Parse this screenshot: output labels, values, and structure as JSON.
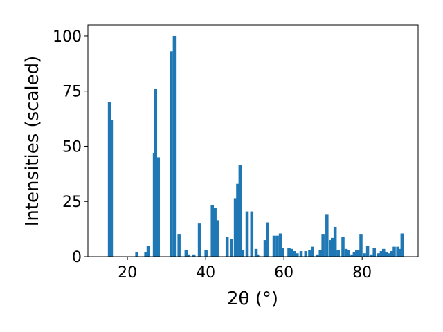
{
  "chart_data": {
    "type": "bar",
    "x_label": "2θ (°)",
    "y_label": "Intensities (scaled)",
    "color": "#1f77b4",
    "x": [
      15.4,
      15.9,
      22.4,
      24.7,
      25.3,
      26.9,
      27.2,
      27.9,
      31.2,
      32.0,
      33.2,
      35.0,
      35.7,
      37.0,
      38.4,
      40.1,
      41.7,
      42.4,
      43.1,
      45.5,
      46.6,
      47.6,
      48.2,
      48.8,
      49.5,
      50.6,
      51.8,
      52.9,
      53.3,
      55.2,
      55.8,
      57.5,
      58.3,
      59.1,
      59.7,
      61.3,
      62.0,
      62.7,
      63.4,
      64.4,
      65.6,
      66.6,
      67.3,
      68.5,
      69.3,
      70.0,
      71.0,
      71.9,
      72.4,
      73.1,
      73.9,
      75.1,
      75.9,
      76.5,
      77.4,
      78.0,
      78.6,
      79.2,
      79.7,
      80.6,
      81.4,
      82.3,
      83.1,
      84.2,
      84.9,
      85.5,
      86.2,
      86.9,
      87.6,
      88.2,
      89.1,
      89.7,
      90.2
    ],
    "values": [
      70,
      62,
      2,
      2,
      5,
      47,
      76,
      45,
      93,
      100,
      10,
      3,
      1,
      1,
      15,
      3,
      23.5,
      22,
      16.5,
      9,
      8,
      26.5,
      33,
      41.5,
      3,
      20.5,
      20.5,
      3.5,
      1,
      7.5,
      15.5,
      9.5,
      9.5,
      10.5,
      4,
      4,
      3.5,
      2.5,
      1.5,
      2.5,
      2.5,
      3,
      4.5,
      1,
      3,
      10,
      19,
      7.5,
      8.5,
      13.5,
      3,
      9,
      3.5,
      3,
      1,
      2,
      3,
      3,
      10,
      1.5,
      5,
      1,
      4,
      1.5,
      2.5,
      3.5,
      2,
      1.5,
      2.5,
      4.5,
      4.5,
      3.5,
      10.5
    ],
    "xlim": [
      9.9,
      94.3
    ],
    "xticks": [
      20,
      40,
      60,
      80
    ],
    "ylim": [
      0,
      105
    ],
    "yticks": [
      0,
      25,
      50,
      75,
      100
    ]
  }
}
